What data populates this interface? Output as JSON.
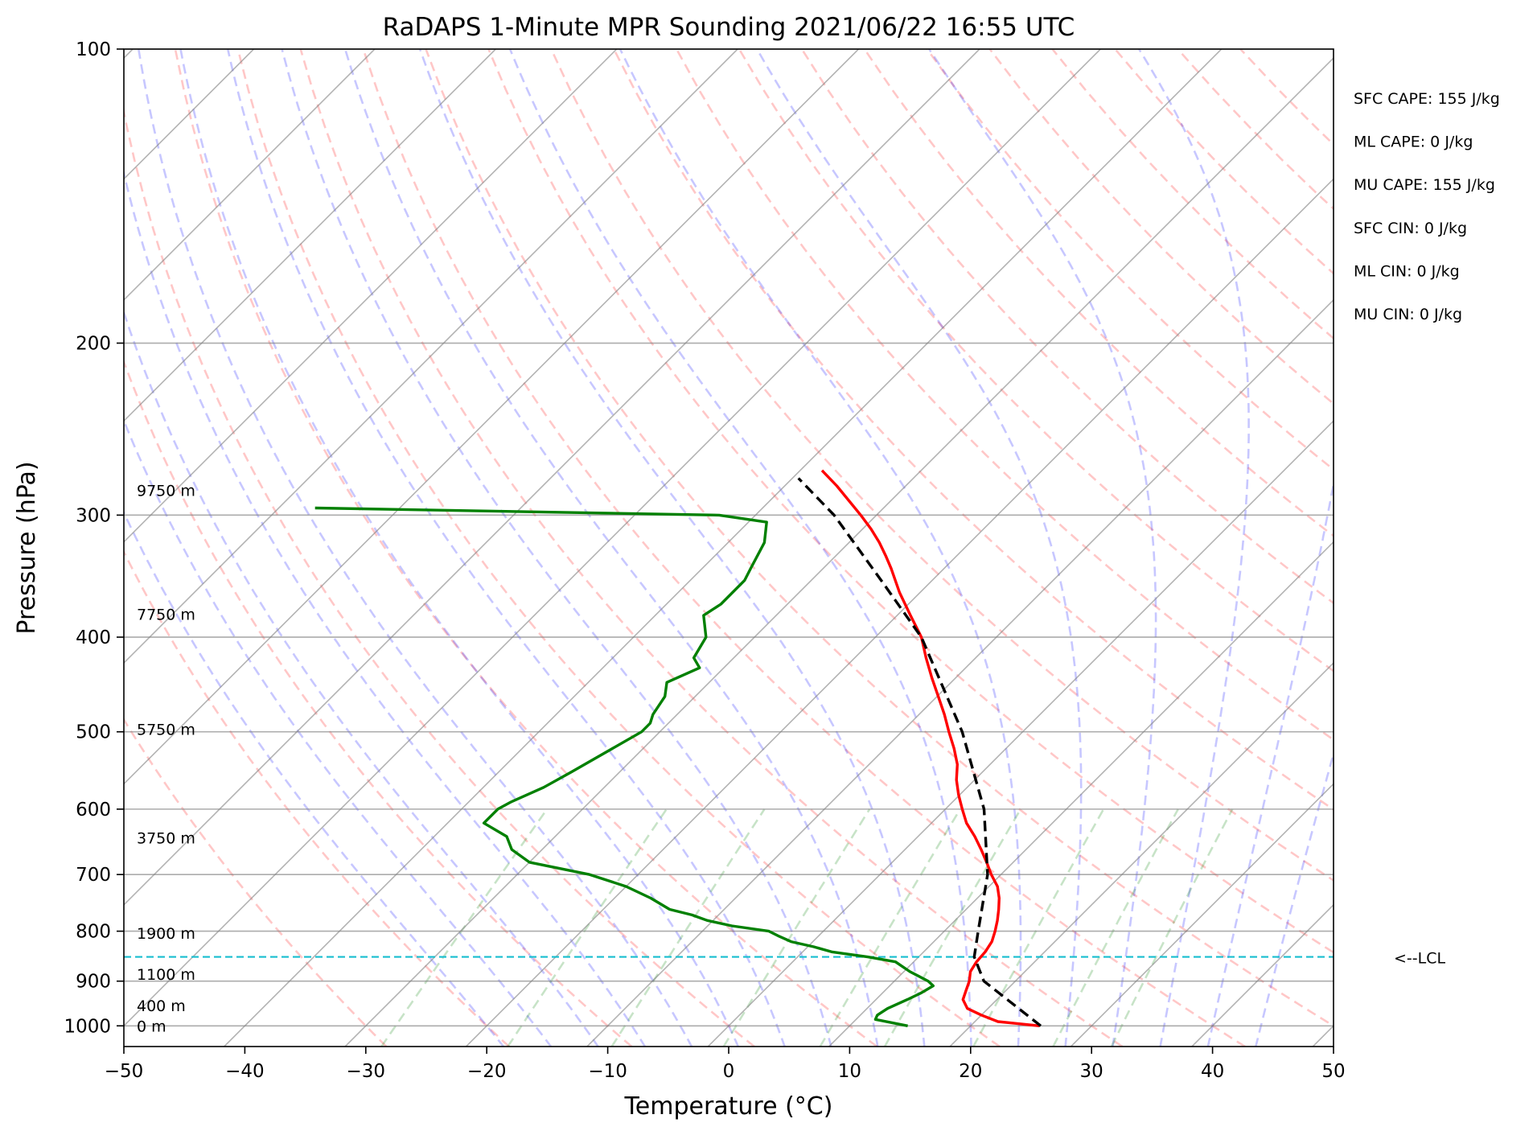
{
  "chart_data": {
    "type": "line",
    "title": "RaDAPS 1-Minute MPR Sounding 2021/06/22 16:55 UTC",
    "xlabel": "Temperature (°C)",
    "ylabel": "Pressure (hPa)",
    "xlim": [
      -50,
      50
    ],
    "ylim": [
      1050,
      100
    ],
    "log_y": true,
    "skew": true,
    "xticks": [
      -50,
      -40,
      -30,
      -20,
      -10,
      0,
      10,
      20,
      30,
      40,
      50
    ],
    "xtick_labels": [
      "−50",
      "−40",
      "−30",
      "−20",
      "−10",
      "0",
      "10",
      "20",
      "30",
      "40",
      "50"
    ],
    "yticks": [
      1000,
      900,
      800,
      700,
      600,
      500,
      400,
      300,
      200,
      100
    ],
    "ytick_labels": [
      "1000",
      "900",
      "800",
      "700",
      "600",
      "500",
      "400",
      "300",
      "200",
      "100"
    ],
    "grid": true,
    "height_labels": [
      {
        "p": 1000,
        "text": "0 m"
      },
      {
        "p": 953,
        "text": "400 m"
      },
      {
        "p": 885,
        "text": "1100 m"
      },
      {
        "p": 804,
        "text": "1900 m"
      },
      {
        "p": 642,
        "text": "3750 m"
      },
      {
        "p": 497,
        "text": "5750 m"
      },
      {
        "p": 379,
        "text": "7750 m"
      },
      {
        "p": 283,
        "text": "9750 m"
      }
    ],
    "lcl": {
      "p": 850,
      "label": "<--LCL"
    },
    "indices": [
      "SFC CAPE: 155 J/kg",
      "ML CAPE: 0 J/kg",
      "MU CAPE: 155 J/kg",
      "SFC CIN: 0 J/kg",
      "ML CIN: 0 J/kg",
      "MU CIN: 0 J/kg"
    ],
    "series": [
      {
        "color": "#ff0000",
        "style": "solid",
        "points": [
          [
            1000,
            25.7
          ],
          [
            990,
            21.9
          ],
          [
            975,
            20
          ],
          [
            960,
            18.3
          ],
          [
            940,
            17.2
          ],
          [
            920,
            16.7
          ],
          [
            900,
            16.2
          ],
          [
            880,
            15.5
          ],
          [
            860,
            15.2
          ],
          [
            840,
            15.1
          ],
          [
            820,
            14.8
          ],
          [
            800,
            14.2
          ],
          [
            780,
            13.5
          ],
          [
            760,
            12.7
          ],
          [
            740,
            11.8
          ],
          [
            720,
            10.7
          ],
          [
            700,
            9.2
          ],
          [
            680,
            7.8
          ],
          [
            660,
            6.3
          ],
          [
            640,
            4.7
          ],
          [
            620,
            2.9
          ],
          [
            600,
            1.4
          ],
          [
            580,
            -0.1
          ],
          [
            560,
            -1.5
          ],
          [
            540,
            -2.7
          ],
          [
            520,
            -4.3
          ],
          [
            500,
            -6.1
          ],
          [
            480,
            -7.9
          ],
          [
            460,
            -9.9
          ],
          [
            440,
            -12
          ],
          [
            420,
            -14.1
          ],
          [
            400,
            -16.2
          ],
          [
            380,
            -18.9
          ],
          [
            360,
            -21.7
          ],
          [
            340,
            -24.4
          ],
          [
            330,
            -25.9
          ],
          [
            320,
            -27.5
          ],
          [
            310,
            -29.3
          ],
          [
            300,
            -31.3
          ],
          [
            280,
            -35.7
          ],
          [
            270,
            -38.2
          ]
        ]
      },
      {
        "color": "#008000",
        "style": "solid",
        "points": [
          [
            1000,
            14.8
          ],
          [
            985,
            11.6
          ],
          [
            975,
            11.4
          ],
          [
            960,
            11.7
          ],
          [
            940,
            12.6
          ],
          [
            925,
            13.2
          ],
          [
            910,
            13.6
          ],
          [
            900,
            12.8
          ],
          [
            880,
            10.5
          ],
          [
            860,
            8.5
          ],
          [
            850,
            5.8
          ],
          [
            840,
            2.4
          ],
          [
            830,
            0.5
          ],
          [
            820,
            -1.8
          ],
          [
            810,
            -3.2
          ],
          [
            800,
            -4.5
          ],
          [
            790,
            -8
          ],
          [
            780,
            -10.5
          ],
          [
            770,
            -12.2
          ],
          [
            760,
            -14.5
          ],
          [
            740,
            -17
          ],
          [
            720,
            -20
          ],
          [
            700,
            -24
          ],
          [
            680,
            -30
          ],
          [
            660,
            -32.5
          ],
          [
            640,
            -34
          ],
          [
            620,
            -37
          ],
          [
            600,
            -37
          ],
          [
            590,
            -36.5
          ],
          [
            570,
            -35
          ],
          [
            550,
            -34
          ],
          [
            500,
            -31.5
          ],
          [
            490,
            -31.5
          ],
          [
            480,
            -32
          ],
          [
            460,
            -32.5
          ],
          [
            445,
            -33.5
          ],
          [
            430,
            -32
          ],
          [
            420,
            -33.3
          ],
          [
            400,
            -34
          ],
          [
            380,
            -36
          ],
          [
            370,
            -35.5
          ],
          [
            350,
            -35.5
          ],
          [
            340,
            -36
          ],
          [
            320,
            -37
          ],
          [
            305,
            -38.5
          ],
          [
            300,
            -43
          ],
          [
            295,
            -77
          ]
        ]
      },
      {
        "color": "#000000",
        "style": "dashed",
        "points": [
          [
            1000,
            25.8
          ],
          [
            900,
            17.4
          ],
          [
            850,
            14.6
          ],
          [
            800,
            12.8
          ],
          [
            700,
            8.9
          ],
          [
            600,
            3.2
          ],
          [
            500,
            -5
          ],
          [
            400,
            -16.2
          ],
          [
            350,
            -24.2
          ],
          [
            300,
            -33.5
          ],
          [
            275,
            -39.5
          ]
        ]
      }
    ]
  }
}
